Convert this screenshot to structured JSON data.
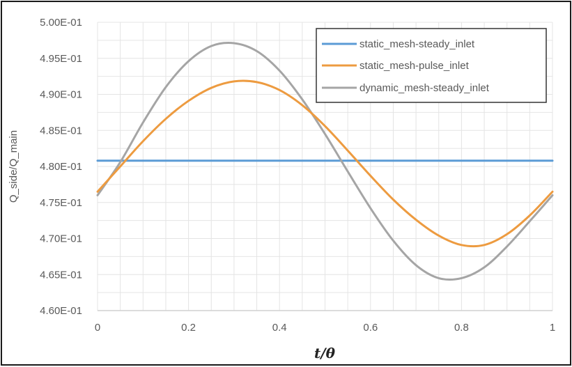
{
  "chart_data": {
    "type": "line",
    "title": "",
    "xlabel": "t/θ",
    "ylabel": "Q_side/Q_main",
    "xlim": [
      0,
      1
    ],
    "ylim": [
      0.46,
      0.5
    ],
    "grid": true,
    "legend_position": "upper right (inside)",
    "x_ticks": [
      "0",
      "0.2",
      "0.4",
      "0.6",
      "0.8",
      "1"
    ],
    "y_ticks": [
      "4.60E-01",
      "4.65E-01",
      "4.70E-01",
      "4.75E-01",
      "4.80E-01",
      "4.85E-01",
      "4.90E-01",
      "4.95E-01",
      "5.00E-01"
    ],
    "x": [
      0,
      0.05,
      0.1,
      0.15,
      0.2,
      0.25,
      0.3,
      0.35,
      0.4,
      0.45,
      0.5,
      0.55,
      0.6,
      0.65,
      0.7,
      0.75,
      0.8,
      0.85,
      0.9,
      0.95,
      1.0
    ],
    "series": [
      {
        "name": "static_mesh-steady_inlet",
        "color": "#5b9bd5",
        "values": [
          0.4808,
          0.4808,
          0.4808,
          0.4808,
          0.4808,
          0.4808,
          0.4808,
          0.4808,
          0.4808,
          0.4808,
          0.4808,
          0.4808,
          0.4808,
          0.4808,
          0.4808,
          0.4808,
          0.4808,
          0.4808,
          0.4808,
          0.4808,
          0.4808
        ]
      },
      {
        "name": "static_mesh-pulse_inlet",
        "color": "#ed9b40",
        "values": [
          0.4765,
          0.48,
          0.4835,
          0.4866,
          0.4891,
          0.4909,
          0.4918,
          0.4917,
          0.4906,
          0.4885,
          0.4856,
          0.4822,
          0.4787,
          0.4754,
          0.4726,
          0.4704,
          0.4691,
          0.4691,
          0.4706,
          0.4732,
          0.4765
        ]
      },
      {
        "name": "dynamic_mesh-steady_inlet",
        "color": "#a5a5a5",
        "values": [
          0.476,
          0.4806,
          0.4861,
          0.491,
          0.4946,
          0.4967,
          0.4971,
          0.496,
          0.4933,
          0.4893,
          0.4845,
          0.4793,
          0.4742,
          0.4697,
          0.4663,
          0.4645,
          0.4645,
          0.466,
          0.4689,
          0.4724,
          0.476
        ]
      }
    ]
  },
  "axes": {
    "ylabel": "Q_side/Q_main",
    "xlabel": "t/θ"
  },
  "legend": {
    "items": [
      {
        "label": "static_mesh-steady_inlet",
        "color": "#5b9bd5"
      },
      {
        "label": "static_mesh-pulse_inlet",
        "color": "#ed9b40"
      },
      {
        "label": "dynamic_mesh-steady_inlet",
        "color": "#a5a5a5"
      }
    ]
  }
}
